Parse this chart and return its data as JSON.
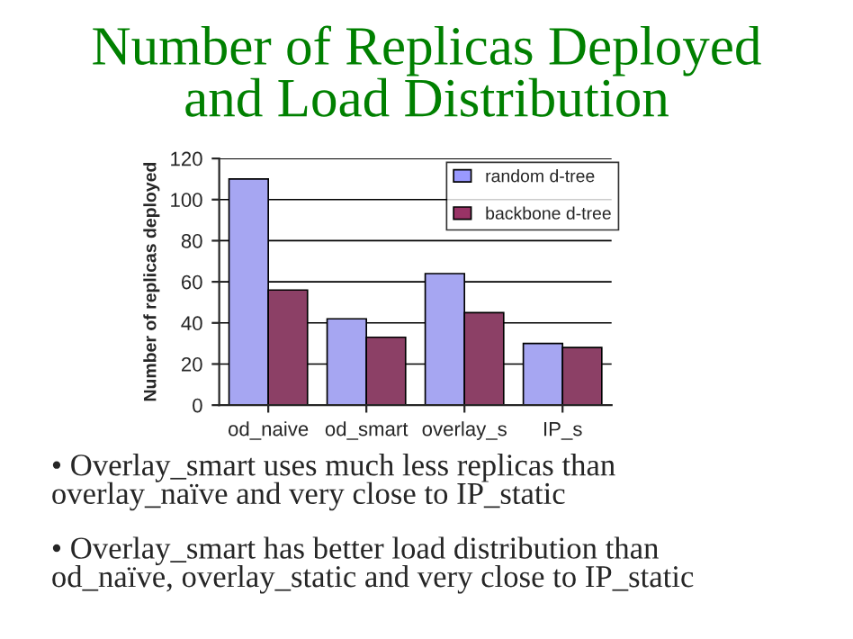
{
  "chart_data": {
    "type": "bar",
    "title": "Number of Replicas Deployed\nand Load Distribution",
    "ylabel": "Number of replicas deployed",
    "categories": [
      "od_naive",
      "od_smart",
      "overlay_s",
      "IP_s"
    ],
    "series": [
      {
        "name": "random d-tree",
        "color": "#9999ff",
        "values": [
          110,
          42,
          64,
          30
        ]
      },
      {
        "name": "backbone d-tree",
        "color": "#993366",
        "values": [
          56,
          33,
          45,
          28
        ]
      }
    ],
    "ylim": [
      0,
      120
    ],
    "yticks": [
      0,
      20,
      40,
      60,
      80,
      100,
      120
    ],
    "grid": "y",
    "legend": "top right",
    "annotations": [
      "• Overlay_smart uses much less replicas than\noverlay_naïve and very close to IP_static",
      "• Overlay_smart has better load distribution than\nod_naïve, overlay_static and very close to IP_static"
    ]
  }
}
